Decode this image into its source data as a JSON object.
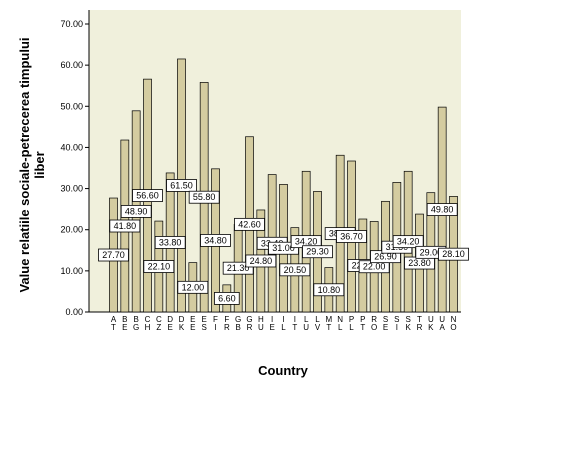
{
  "chart_data": {
    "type": "bar",
    "xlabel": "Country",
    "ylabel": "Value relatiile sociale-petrecerea timpului liber",
    "ylim": [
      0,
      70
    ],
    "ytick_labels": [
      "0.00",
      "10.00",
      "20.00",
      "30.00",
      "40.00",
      "50.00",
      "60.00",
      "70.00"
    ],
    "grid": false,
    "legend": "none",
    "bar_color": "#d4cca0",
    "plot_background": "#f0f0dc",
    "categories": [
      {
        "lines": [
          "A",
          "T"
        ],
        "value": 27.7,
        "label": "27.70"
      },
      {
        "lines": [
          "B",
          "E"
        ],
        "value": 41.8,
        "label": "41.80"
      },
      {
        "lines": [
          "B",
          "G"
        ],
        "value": 48.9,
        "label": "48.90"
      },
      {
        "lines": [
          "C",
          "H"
        ],
        "value": 56.6,
        "label": "56.60"
      },
      {
        "lines": [
          "C",
          "Z"
        ],
        "value": 22.1,
        "label": "22.10"
      },
      {
        "lines": [
          "D",
          "E"
        ],
        "value": 33.8,
        "label": "33.80"
      },
      {
        "lines": [
          "D",
          "K"
        ],
        "value": 61.5,
        "label": "61.50"
      },
      {
        "lines": [
          "E",
          "E"
        ],
        "value": 12.0,
        "label": "12.00"
      },
      {
        "lines": [
          "E",
          "S"
        ],
        "value": 55.8,
        "label": "55.80"
      },
      {
        "lines": [
          "F",
          "I"
        ],
        "value": 34.8,
        "label": "34.80"
      },
      {
        "lines": [
          "F",
          "R"
        ],
        "value": 6.6,
        "label": "6.60"
      },
      {
        "lines": [
          "G",
          "B"
        ],
        "value": 21.3,
        "label": "21.30"
      },
      {
        "lines": [
          "G",
          "R"
        ],
        "value": 42.6,
        "label": "42.60"
      },
      {
        "lines": [
          "H",
          "U"
        ],
        "value": 24.8,
        "label": "24.80"
      },
      {
        "lines": [
          "I",
          "E"
        ],
        "value": 33.4,
        "label": "33.40"
      },
      {
        "lines": [
          "I",
          "L"
        ],
        "value": 31.0,
        "label": "31.00"
      },
      {
        "lines": [
          "I",
          "T"
        ],
        "value": 20.5,
        "label": "20.50"
      },
      {
        "lines": [
          "L",
          "U"
        ],
        "value": 34.2,
        "label": "34.20"
      },
      {
        "lines": [
          "L",
          "V"
        ],
        "value": 29.3,
        "label": "29.30"
      },
      {
        "lines": [
          "M",
          "T"
        ],
        "value": 10.8,
        "label": "10.80"
      },
      {
        "lines": [
          "N",
          "L"
        ],
        "value": 38.1,
        "label": "38.10"
      },
      {
        "lines": [
          "P",
          "L"
        ],
        "value": 36.7,
        "label": "36.70"
      },
      {
        "lines": [
          "P",
          "T"
        ],
        "value": 22.6,
        "label": "22.60"
      },
      {
        "lines": [
          "R",
          "O"
        ],
        "value": 22.0,
        "label": "22.00"
      },
      {
        "lines": [
          "S",
          "E"
        ],
        "value": 26.9,
        "label": "26.90"
      },
      {
        "lines": [
          "S",
          "I"
        ],
        "value": 31.5,
        "label": "31.50"
      },
      {
        "lines": [
          "S",
          "K"
        ],
        "value": 34.2,
        "label": "34.20"
      },
      {
        "lines": [
          "T",
          "R"
        ],
        "value": 23.8,
        "label": "23.80"
      },
      {
        "lines": [
          "U",
          "K"
        ],
        "value": 29.0,
        "label": "29.00"
      },
      {
        "lines": [
          "U",
          "A"
        ],
        "value": 49.8,
        "label": "49.80"
      },
      {
        "lines": [
          "N",
          "O"
        ],
        "value": 28.1,
        "label": "28.10"
      }
    ]
  }
}
